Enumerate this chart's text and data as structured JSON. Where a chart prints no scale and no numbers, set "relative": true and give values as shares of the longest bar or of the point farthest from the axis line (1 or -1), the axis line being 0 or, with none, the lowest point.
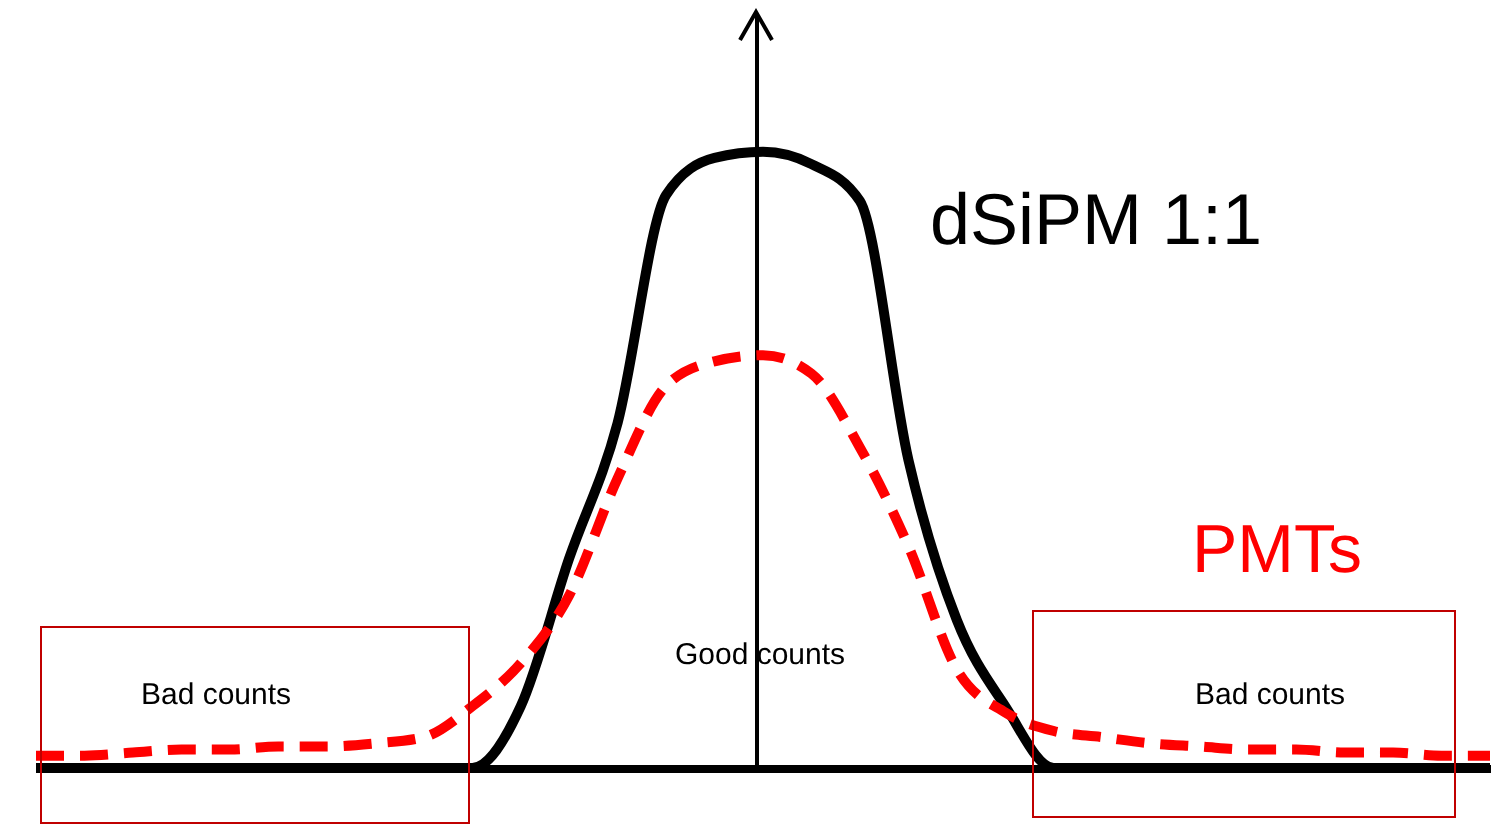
{
  "chart_data": {
    "type": "line",
    "relative": true,
    "marker": "none",
    "categories": [
      null,
      null,
      null,
      null,
      null,
      null,
      null,
      null,
      null,
      null,
      null,
      null,
      null,
      null,
      null,
      null,
      null,
      null,
      null,
      null,
      null,
      null,
      null,
      null,
      null,
      null,
      null,
      null,
      null,
      null,
      null
    ],
    "series": [
      {
        "name": "dSiPM 1:1",
        "color": "#000000",
        "line_style": "solid",
        "values": [
          0,
          0,
          0,
          0,
          0,
          0,
          0,
          0,
          0,
          0,
          0.1,
          0.34,
          0.56,
          0.93,
          0.99,
          1,
          0.98,
          0.92,
          0.5,
          0.24,
          0.1,
          0,
          0,
          0,
          0,
          0,
          0,
          0,
          0,
          0,
          0
        ]
      },
      {
        "name": "PMTs",
        "color": "#ff0000",
        "line_style": "dashed",
        "values": [
          0.02,
          0.02,
          0.025,
          0.03,
          0.03,
          0.035,
          0.035,
          0.04,
          0.05,
          0.1,
          0.17,
          0.28,
          0.47,
          0.62,
          0.66,
          0.67,
          0.64,
          0.52,
          0.36,
          0.16,
          0.09,
          0.06,
          0.05,
          0.04,
          0.035,
          0.03,
          0.03,
          0.025,
          0.025,
          0.02,
          0.02
        ]
      }
    ],
    "annotations": [
      "Bad counts",
      "Good counts",
      "Bad counts"
    ]
  }
}
